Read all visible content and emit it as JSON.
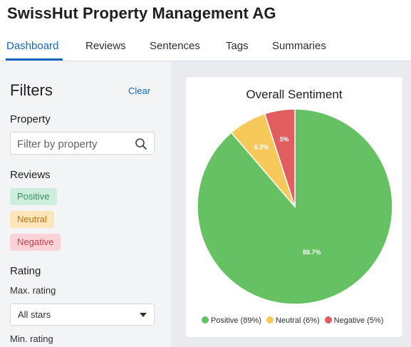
{
  "header": {
    "title": "SwissHut Property Management AG"
  },
  "tabs": [
    {
      "label": "Dashboard",
      "active": true
    },
    {
      "label": "Reviews"
    },
    {
      "label": "Sentences"
    },
    {
      "label": "Tags"
    },
    {
      "label": "Summaries"
    }
  ],
  "sidebar": {
    "title": "Filters",
    "clear_label": "Clear",
    "property": {
      "label": "Property",
      "placeholder": "Filter by property",
      "icon": "search-icon"
    },
    "reviews": {
      "label": "Reviews",
      "chips": [
        "Positive",
        "Neutral",
        "Negative"
      ]
    },
    "rating": {
      "label": "Rating",
      "max_label": "Max. rating",
      "max_value": "All stars",
      "min_label": "Min. rating"
    }
  },
  "colors": {
    "accent": "#1766c2",
    "positive": "#66c162",
    "neutral": "#f7c85a",
    "negative": "#e15d60"
  },
  "chart_data": {
    "type": "pie",
    "title": "Overall Sentiment",
    "slices": [
      {
        "label": "Positive",
        "value": 88.7,
        "data_label": "88.7%",
        "legend": "Positive (89%)",
        "color": "#66c162"
      },
      {
        "label": "Neutral",
        "value": 6.3,
        "data_label": "6.3%",
        "legend": "Neutral (6%)",
        "color": "#f7c85a"
      },
      {
        "label": "Negative",
        "value": 5,
        "data_label": "5%",
        "legend": "Negative (5%)",
        "color": "#e15d60"
      }
    ],
    "legend_position": "bottom"
  }
}
